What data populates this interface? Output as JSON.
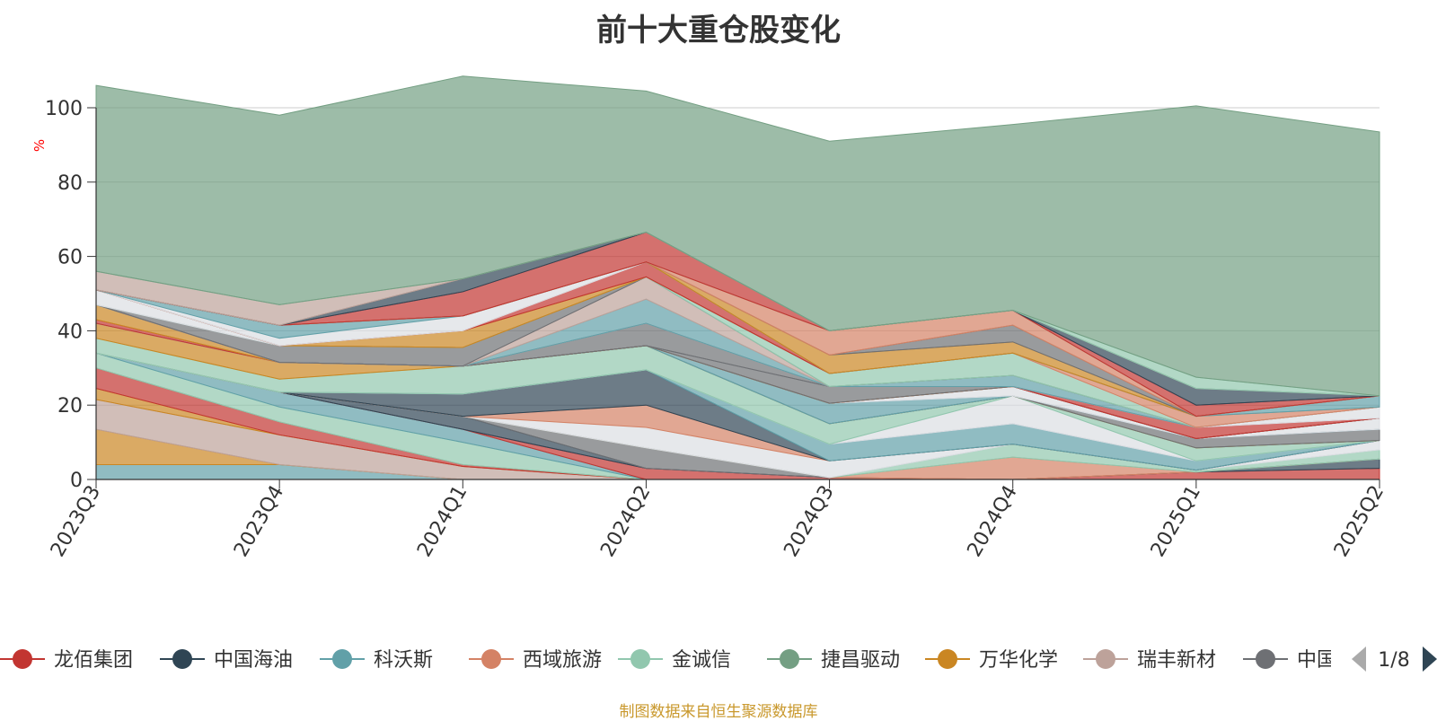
{
  "chart_data": {
    "type": "area",
    "stacked": true,
    "title": "前十大重仓股变化",
    "ylabel": "%",
    "ylim": [
      0,
      100
    ],
    "yticks": [
      0,
      20,
      40,
      60,
      80,
      100
    ],
    "categories": [
      "2023Q3",
      "2023Q4",
      "2024Q1",
      "2024Q2",
      "2024Q3",
      "2024Q4",
      "2025Q1",
      "2025Q2"
    ],
    "grid": true,
    "legend_placement": "bottom",
    "legend_page": "1/8",
    "legend_items": [
      {
        "name": "龙佰集团",
        "color": "#c23531"
      },
      {
        "name": "中国海油",
        "color": "#2f4554"
      },
      {
        "name": "科沃斯",
        "color": "#61a0a8"
      },
      {
        "name": "西域旅游",
        "color": "#d48265"
      },
      {
        "name": "金诚信",
        "color": "#91c7ae"
      },
      {
        "name": "捷昌驱动",
        "color": "#749f83"
      },
      {
        "name": "万华化学",
        "color": "#ca8622"
      },
      {
        "name": "瑞丰新材",
        "color": "#bda29a"
      },
      {
        "name": "中国",
        "color": "#6e7074"
      }
    ],
    "series": [
      {
        "color": "#61a0a8",
        "values": [
          4,
          4,
          0,
          0,
          0,
          0,
          0,
          0
        ]
      },
      {
        "color": "#ca8622",
        "values": [
          9.5,
          0,
          0,
          0,
          0,
          0,
          0,
          0
        ]
      },
      {
        "color": "#bda29a",
        "values": [
          8,
          8,
          3.5,
          0,
          0,
          0,
          0,
          0
        ]
      },
      {
        "color": "#ca8622",
        "values": [
          3,
          0,
          0,
          0,
          0,
          0,
          0,
          0
        ]
      },
      {
        "color": "#c23531",
        "values": [
          5.5,
          3.5,
          0.5,
          0,
          0,
          0,
          0,
          0
        ]
      },
      {
        "color": "#91c7ae",
        "values": [
          4,
          4,
          6,
          0,
          0,
          0,
          0,
          0
        ]
      },
      {
        "color": "#61a0a8",
        "values": [
          0,
          4,
          3.5,
          0,
          0,
          0,
          0,
          0
        ]
      },
      {
        "color": "#c23531",
        "values": [
          0,
          0,
          0,
          3,
          0.5,
          0,
          2,
          3
        ]
      },
      {
        "color": "#2f4554",
        "values": [
          0,
          0,
          3.5,
          0,
          0,
          0,
          0,
          2.5
        ]
      },
      {
        "color": "#6e7074",
        "values": [
          0,
          0,
          0,
          5.5,
          0,
          0,
          0,
          0
        ]
      },
      {
        "color": "#d48265",
        "values": [
          0,
          0,
          0,
          0,
          0,
          6,
          0,
          0
        ]
      },
      {
        "color": "#91c7ae",
        "values": [
          0,
          0,
          0,
          0,
          0,
          3.5,
          0.5,
          2.5
        ]
      },
      {
        "color": "#dcdee3",
        "values": [
          0,
          0,
          0,
          5.5,
          4.5,
          0,
          0,
          2.5
        ]
      },
      {
        "color": "#d48265",
        "values": [
          0,
          0,
          0,
          6,
          0,
          0,
          0,
          0
        ]
      },
      {
        "color": "#2f4554",
        "values": [
          0,
          0,
          6,
          9.5,
          0,
          0,
          0,
          0
        ]
      },
      {
        "color": "#61a0a8",
        "values": [
          0,
          0,
          0,
          0,
          4.5,
          5.5,
          2.5,
          0
        ]
      },
      {
        "color": "#dcdee3",
        "values": [
          0,
          0,
          0,
          0,
          0,
          7.5,
          0,
          0
        ]
      },
      {
        "color": "#91c7ae",
        "values": [
          4,
          3.5,
          7.5,
          6.5,
          5.5,
          0,
          3.5,
          0
        ]
      },
      {
        "color": "#ca8622",
        "values": [
          4,
          4.5,
          0,
          0,
          0,
          0,
          0,
          0
        ]
      },
      {
        "color": "#6e7074",
        "values": [
          0,
          0,
          0,
          0,
          0,
          0,
          2.5,
          3
        ]
      },
      {
        "color": "#61a0a8",
        "values": [
          0,
          0,
          0,
          0,
          5.5,
          0,
          0,
          0
        ]
      },
      {
        "color": "#dcdee3",
        "values": [
          0,
          0,
          0,
          0,
          0,
          2.5,
          0,
          3
        ]
      },
      {
        "color": "#c23531",
        "values": [
          1,
          0,
          0,
          0,
          0,
          0,
          0,
          0
        ]
      },
      {
        "color": "#ca8622",
        "values": [
          4,
          0,
          0,
          0,
          0,
          0,
          0,
          0
        ]
      },
      {
        "color": "#6e7074",
        "values": [
          0,
          0,
          0,
          0,
          4.5,
          0,
          0,
          0
        ]
      },
      {
        "color": "#6e7074",
        "values": [
          0,
          0,
          0,
          6,
          0,
          0,
          0,
          0
        ]
      },
      {
        "color": "#c23531",
        "values": [
          0,
          0,
          0,
          0,
          0,
          0,
          3,
          0
        ]
      },
      {
        "color": "#dcdee3",
        "values": [
          0,
          0,
          0,
          0,
          0,
          0,
          0,
          3
        ]
      },
      {
        "color": "#61a0a8",
        "values": [
          0,
          0,
          0,
          6.5,
          0,
          3,
          0,
          0
        ]
      },
      {
        "color": "#bda29a",
        "values": [
          0,
          0,
          0,
          6,
          0,
          0,
          0,
          0
        ]
      },
      {
        "color": "#6e7074",
        "values": [
          0,
          4.5,
          5,
          0,
          0,
          0,
          0,
          0
        ]
      },
      {
        "color": "#91c7ae",
        "values": [
          0,
          0,
          0,
          0,
          3.5,
          6,
          0,
          0
        ]
      },
      {
        "color": "#dcdee3",
        "values": [
          4,
          0,
          0,
          0,
          0,
          0,
          0,
          0
        ]
      },
      {
        "color": "#d48265",
        "values": [
          0,
          0,
          0,
          0,
          0,
          0,
          3,
          0
        ]
      },
      {
        "color": "#61a0a8",
        "values": [
          0,
          0,
          0,
          0,
          0,
          0,
          0,
          3
        ]
      },
      {
        "color": "#ca8622",
        "values": [
          0,
          0,
          4.5,
          0,
          0,
          0,
          0,
          0
        ]
      },
      {
        "color": "#c23531",
        "values": [
          0,
          0,
          0,
          4,
          0,
          0,
          0,
          0
        ]
      },
      {
        "color": "#dcdee3",
        "values": [
          0,
          2,
          4,
          0,
          0,
          0,
          0,
          0
        ]
      },
      {
        "color": "#61a0a8",
        "values": [
          0,
          3.5,
          0,
          0,
          0,
          0,
          0,
          0
        ]
      },
      {
        "color": "#ca8622",
        "values": [
          0,
          0,
          0,
          0,
          5,
          3,
          0,
          0
        ]
      },
      {
        "color": "#6e7074",
        "values": [
          0,
          0,
          0,
          0,
          0,
          4.5,
          0,
          0
        ]
      },
      {
        "color": "#d48265",
        "values": [
          0,
          0,
          0,
          0,
          6.5,
          4,
          0,
          0
        ]
      },
      {
        "color": "#91c7ae",
        "values": [
          0,
          0,
          0,
          0,
          0,
          0,
          0,
          0
        ]
      },
      {
        "color": "#c23531",
        "values": [
          0,
          0,
          6.5,
          8,
          0,
          0,
          3,
          0
        ]
      },
      {
        "color": "#2f4554",
        "values": [
          0,
          0,
          3.5,
          0,
          0,
          0,
          4.5,
          0
        ]
      },
      {
        "color": "#bda29a",
        "values": [
          5,
          5.5,
          0,
          0,
          0,
          0,
          0,
          0
        ]
      },
      {
        "color": "#91c7ae",
        "values": [
          0,
          0,
          0,
          0,
          0,
          0,
          3,
          0
        ]
      },
      {
        "color": "#749f83",
        "values": [
          50,
          51,
          54.5,
          38,
          51,
          50,
          73,
          71
        ]
      }
    ]
  },
  "source_note": "制图数据来自恒生聚源数据库"
}
